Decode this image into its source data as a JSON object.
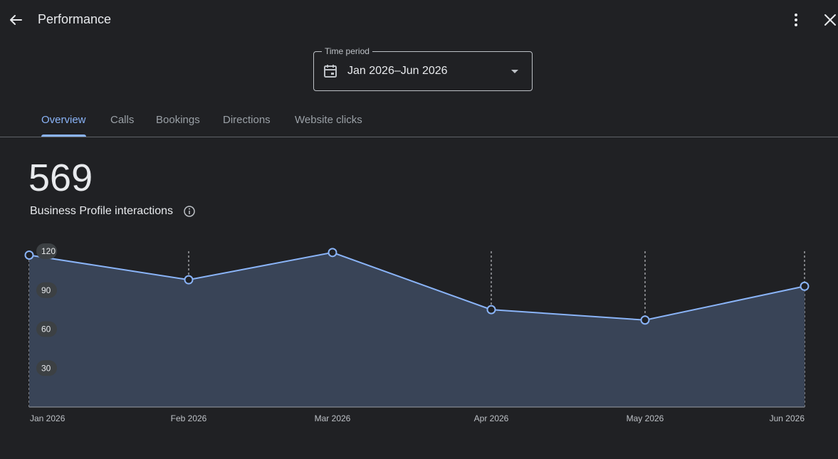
{
  "header": {
    "title": "Performance"
  },
  "icons": {
    "back": "arrow-back-icon",
    "more": "more-vert-icon",
    "close": "close-icon",
    "calendar": "calendar-icon",
    "dropdown": "dropdown-caret-icon",
    "info": "info-icon"
  },
  "period": {
    "legend": "Time period",
    "value": "Jan 2026–Jun 2026"
  },
  "tabs": [
    {
      "label": "Overview",
      "active": true
    },
    {
      "label": "Calls",
      "active": false
    },
    {
      "label": "Bookings",
      "active": false
    },
    {
      "label": "Directions",
      "active": false
    },
    {
      "label": "Website clicks",
      "active": false
    }
  ],
  "metric": {
    "value": "569",
    "label": "Business Profile interactions"
  },
  "colors": {
    "accent": "#8ab4f8",
    "area_fill": "#394457",
    "background": "#202124"
  },
  "chart_data": {
    "type": "area",
    "x": [
      "Jan 2026",
      "Feb 2026",
      "Mar 2026",
      "Apr 2026",
      "May 2026",
      "Jun 2026"
    ],
    "x_pos": [
      0,
      1,
      2,
      3,
      4,
      5
    ],
    "series": [
      {
        "values": [
          117,
          98,
          119,
          75,
          67,
          93
        ]
      }
    ],
    "y_ticks": [
      30,
      60,
      90,
      120
    ],
    "ylim": [
      0,
      120
    ],
    "grid": "vertical-dashed"
  }
}
